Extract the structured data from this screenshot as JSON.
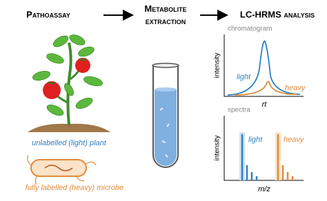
{
  "steps": [
    "Pathoassay",
    "Metabolite extraction",
    "LC-HRMS analysis"
  ],
  "plant_label": "unlabelled (light) plant",
  "microbe_label": "fully labelled (heavy) microbe",
  "chromatogram": {
    "title": "chromatogram",
    "y_label": "intensity",
    "x_label": "rt",
    "light_label": "light",
    "heavy_label": "heavy"
  },
  "spectra": {
    "title": "spectra",
    "y_label": "intensity",
    "x_label": "m/z",
    "light_label": "light",
    "heavy_label": "heavy"
  }
}
